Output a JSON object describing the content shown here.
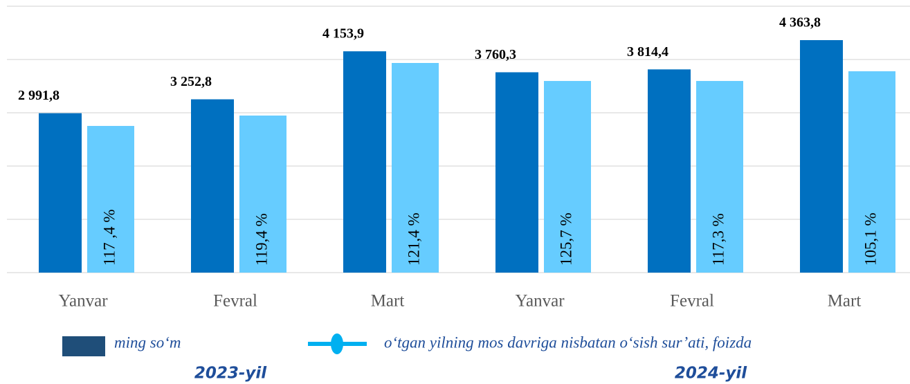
{
  "chart_data": {
    "type": "bar",
    "categories": [
      "Yanvar",
      "Fevral",
      "Mart",
      "Yanvar",
      "Fevral",
      "Mart"
    ],
    "ylim": [
      0,
      5000
    ],
    "yticks": [
      0,
      1000,
      2000,
      3000,
      4000,
      5000
    ],
    "grid": true,
    "series": [
      {
        "name": "ming so‘m",
        "color": "#0070c0",
        "legend_color": "#1f4e79",
        "values": [
          2991.8,
          3252.8,
          4153.9,
          3760.3,
          3814.4,
          4363.8
        ],
        "value_labels": [
          "2 991,8",
          "3 252,8",
          "4 153,9",
          "3 760,3",
          "3 814,4",
          "4 363,8"
        ]
      },
      {
        "name": "o‘tgan yilning mos davriga nisbatan o‘sish sur’ati, foizda",
        "color": "#66ccff",
        "legend_color": "#00b0f0",
        "values": [
          2753,
          2948,
          3935,
          3597,
          3597,
          3779
        ],
        "bar_texts": [
          "117 ,4 %",
          "119,4 %",
          "121,4 %",
          "125,7 %",
          "117,3 %",
          "105,1 %"
        ]
      }
    ],
    "group_labels": [
      "2023-yil",
      "2024-yil"
    ]
  }
}
